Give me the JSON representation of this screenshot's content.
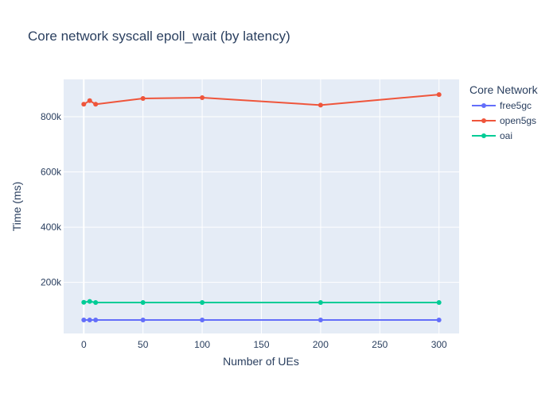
{
  "chart_data": {
    "type": "line",
    "title": "Core network syscall epoll_wait (by latency)",
    "xlabel": "Number of UEs",
    "ylabel": "Time (ms)",
    "xlim": [
      -17,
      317
    ],
    "ylim": [
      15000,
      935000
    ],
    "x_ticks": [
      0,
      50,
      100,
      150,
      200,
      250,
      300
    ],
    "y_ticks": [
      200000,
      400000,
      600000,
      800000
    ],
    "y_tick_labels": [
      "200k",
      "400k",
      "600k",
      "800k"
    ],
    "grid": true,
    "legend": {
      "title": "Core Network",
      "placement": "right"
    },
    "x": [
      0,
      5,
      10,
      50,
      100,
      200,
      300
    ],
    "series": [
      {
        "name": "free5gc",
        "color": "#636efa",
        "values": [
          64000,
          64000,
          64000,
          64000,
          64000,
          64000,
          64000
        ]
      },
      {
        "name": "open5gs",
        "color": "#ef553b",
        "values": [
          845000,
          858000,
          845000,
          866000,
          869000,
          842000,
          880000
        ]
      },
      {
        "name": "oai",
        "color": "#00cc96",
        "values": [
          128000,
          131000,
          127000,
          127000,
          127000,
          127000,
          127000
        ]
      }
    ]
  }
}
